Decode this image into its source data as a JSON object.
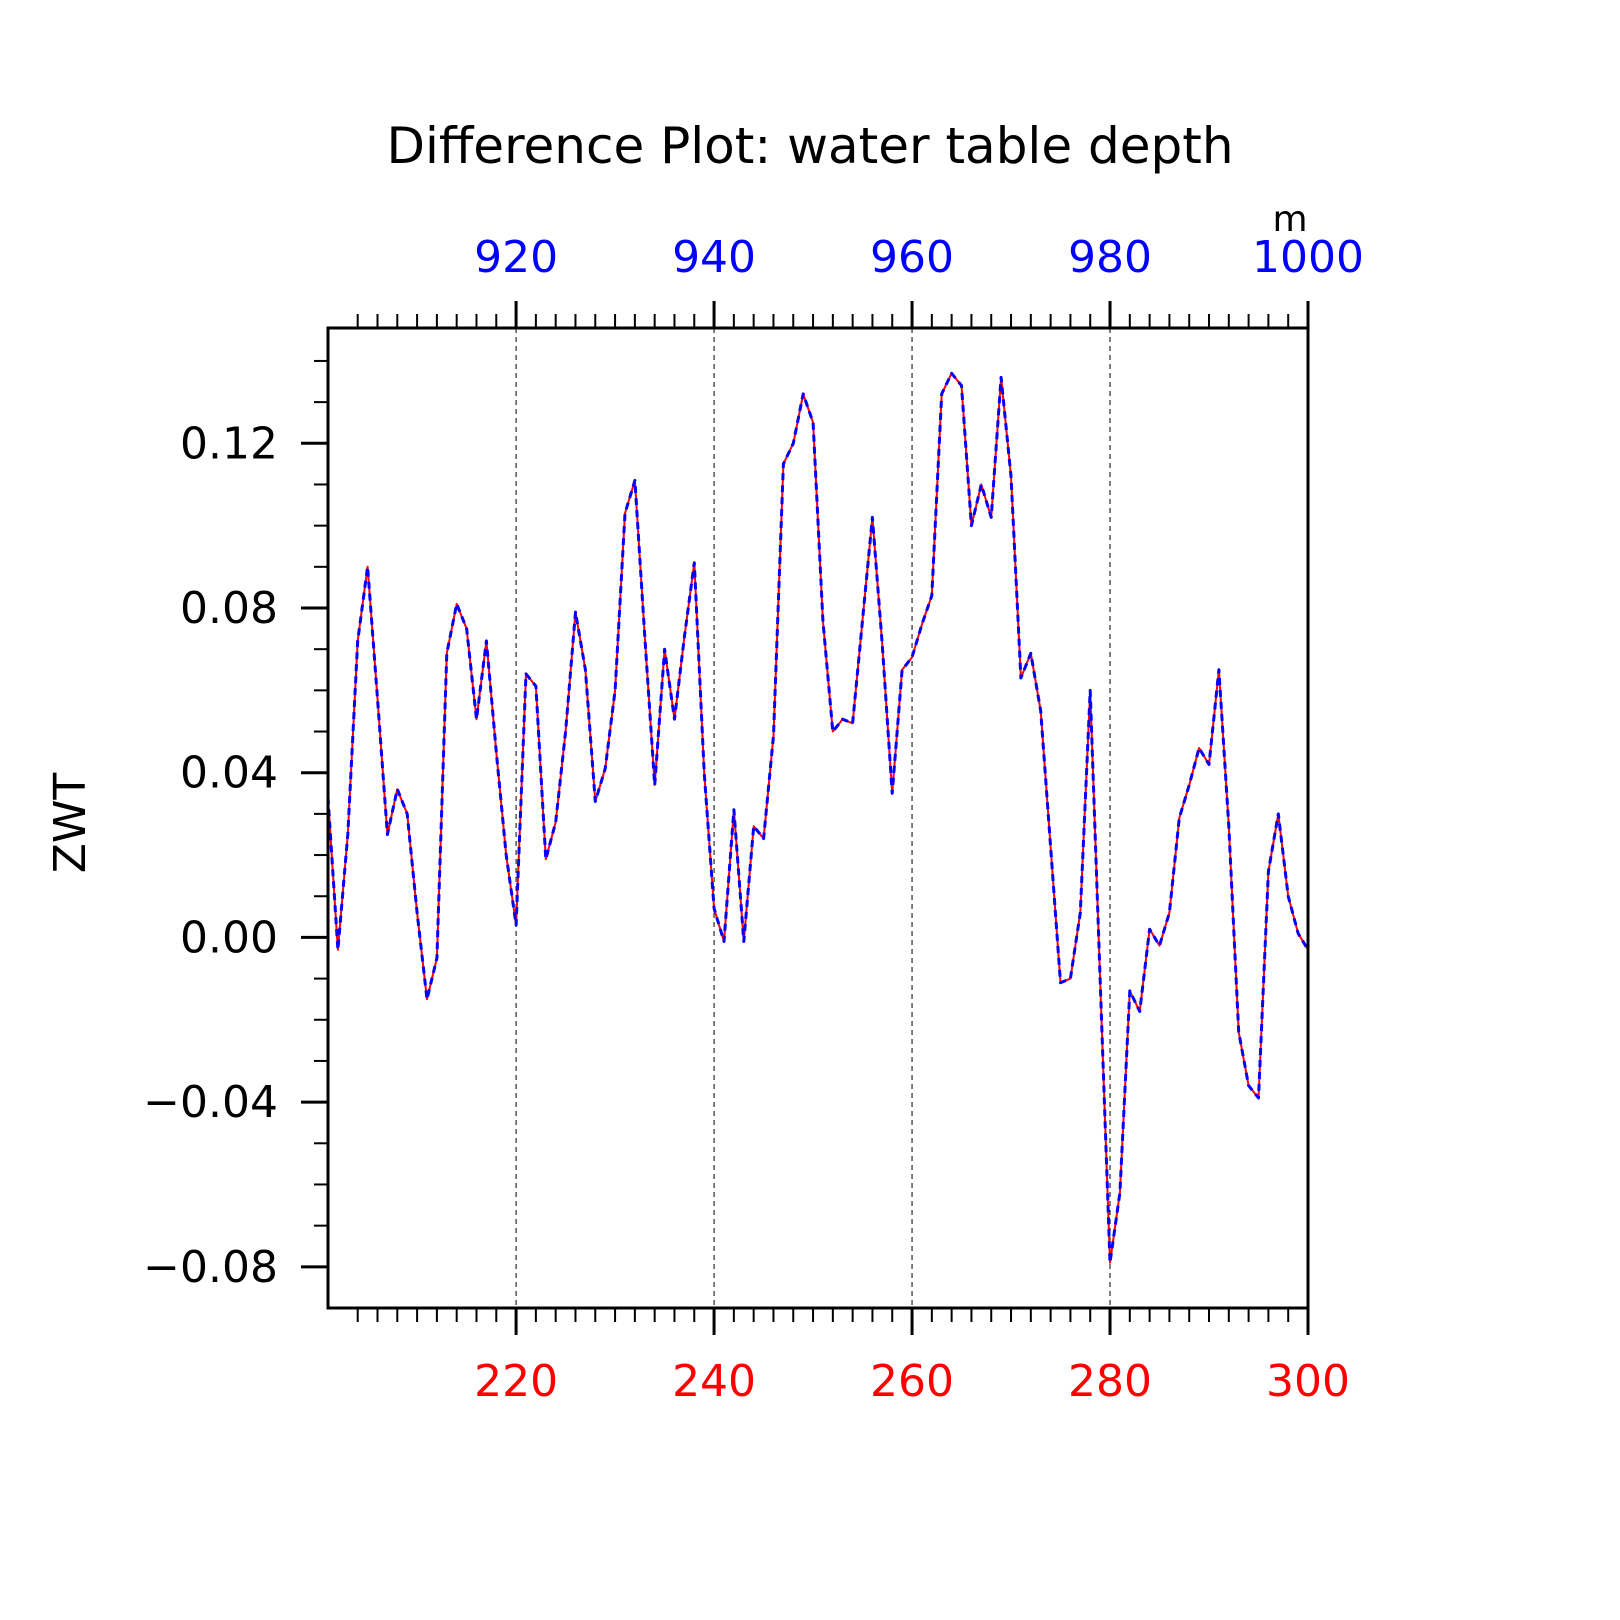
{
  "chart_data": {
    "type": "line",
    "title": "Difference Plot: water table depth",
    "ylabel": "ZWT",
    "top_axis_unit": "m",
    "xlim": [
      201,
      300
    ],
    "ylim": [
      -0.09,
      0.148
    ],
    "grid": "vertical dashed lines at major bottom ticks",
    "bottom_ticks": {
      "values": [
        220,
        240,
        260,
        280,
        300
      ],
      "labels": [
        "220",
        "240",
        "260",
        "280",
        "300"
      ],
      "color": "#ff0000"
    },
    "top_ticks": {
      "values": [
        220,
        240,
        260,
        280,
        300
      ],
      "labels": [
        "920",
        "940",
        "960",
        "980",
        "1000"
      ],
      "color": "#0000ff"
    },
    "y_ticks": {
      "values": [
        0.12,
        0.08,
        0.04,
        0.0,
        -0.04,
        -0.08
      ],
      "labels": [
        "0.12",
        "0.08",
        "0.04",
        "0.00",
        "−0.04",
        "−0.08"
      ]
    },
    "x": [
      201,
      202,
      203,
      204,
      205,
      206,
      207,
      208,
      209,
      210,
      211,
      212,
      213,
      214,
      215,
      216,
      217,
      218,
      219,
      220,
      221,
      222,
      223,
      224,
      225,
      226,
      227,
      228,
      229,
      230,
      231,
      232,
      233,
      234,
      235,
      236,
      237,
      238,
      239,
      240,
      241,
      242,
      243,
      244,
      245,
      246,
      247,
      248,
      249,
      250,
      251,
      252,
      253,
      254,
      255,
      256,
      257,
      258,
      259,
      260,
      261,
      262,
      263,
      264,
      265,
      266,
      267,
      268,
      269,
      270,
      271,
      272,
      273,
      274,
      275,
      276,
      277,
      278,
      279,
      280,
      281,
      282,
      283,
      284,
      285,
      286,
      287,
      288,
      289,
      290,
      291,
      292,
      293,
      294,
      295,
      296,
      297,
      298,
      299,
      300
    ],
    "series": [
      {
        "color": "#ff0000",
        "style": "solid",
        "values": [
          0.034,
          -0.003,
          0.025,
          0.072,
          0.09,
          0.058,
          0.025,
          0.036,
          0.03,
          0.006,
          -0.015,
          -0.005,
          0.069,
          0.081,
          0.075,
          0.053,
          0.072,
          0.045,
          0.02,
          0.003,
          0.064,
          0.061,
          0.019,
          0.028,
          0.05,
          0.079,
          0.065,
          0.033,
          0.041,
          0.06,
          0.103,
          0.111,
          0.073,
          0.037,
          0.07,
          0.053,
          0.073,
          0.091,
          0.04,
          0.007,
          -0.001,
          0.031,
          -0.001,
          0.027,
          0.024,
          0.049,
          0.115,
          0.12,
          0.132,
          0.125,
          0.077,
          0.05,
          0.053,
          0.052,
          0.077,
          0.102,
          0.071,
          0.035,
          0.065,
          0.068,
          0.076,
          0.083,
          0.132,
          0.137,
          0.134,
          0.1,
          0.11,
          0.102,
          0.136,
          0.112,
          0.063,
          0.069,
          0.055,
          0.022,
          -0.011,
          -0.01,
          0.006,
          0.06,
          -0.01,
          -0.079,
          -0.062,
          -0.013,
          -0.018,
          0.002,
          -0.002,
          0.006,
          0.029,
          0.037,
          0.046,
          0.042,
          0.065,
          0.027,
          -0.023,
          -0.036,
          -0.039,
          0.016,
          0.03,
          0.01,
          0.001,
          -0.003
        ]
      },
      {
        "color": "#0000ff",
        "style": "dashed",
        "values": [
          0.034,
          -0.003,
          0.025,
          0.072,
          0.09,
          0.058,
          0.025,
          0.036,
          0.03,
          0.006,
          -0.015,
          -0.005,
          0.069,
          0.081,
          0.075,
          0.053,
          0.072,
          0.045,
          0.02,
          0.003,
          0.064,
          0.061,
          0.019,
          0.028,
          0.05,
          0.079,
          0.065,
          0.033,
          0.041,
          0.06,
          0.103,
          0.111,
          0.073,
          0.037,
          0.07,
          0.053,
          0.073,
          0.091,
          0.04,
          0.007,
          -0.001,
          0.031,
          -0.001,
          0.027,
          0.024,
          0.049,
          0.115,
          0.12,
          0.132,
          0.125,
          0.077,
          0.05,
          0.053,
          0.052,
          0.077,
          0.102,
          0.071,
          0.035,
          0.065,
          0.068,
          0.076,
          0.083,
          0.132,
          0.137,
          0.134,
          0.1,
          0.11,
          0.102,
          0.136,
          0.112,
          0.063,
          0.069,
          0.055,
          0.022,
          -0.011,
          -0.01,
          0.006,
          0.06,
          -0.01,
          -0.079,
          -0.062,
          -0.013,
          -0.018,
          0.002,
          -0.002,
          0.006,
          0.029,
          0.037,
          0.046,
          0.042,
          0.065,
          0.027,
          -0.023,
          -0.036,
          -0.039,
          0.016,
          0.03,
          0.01,
          0.001,
          -0.003
        ]
      }
    ]
  }
}
